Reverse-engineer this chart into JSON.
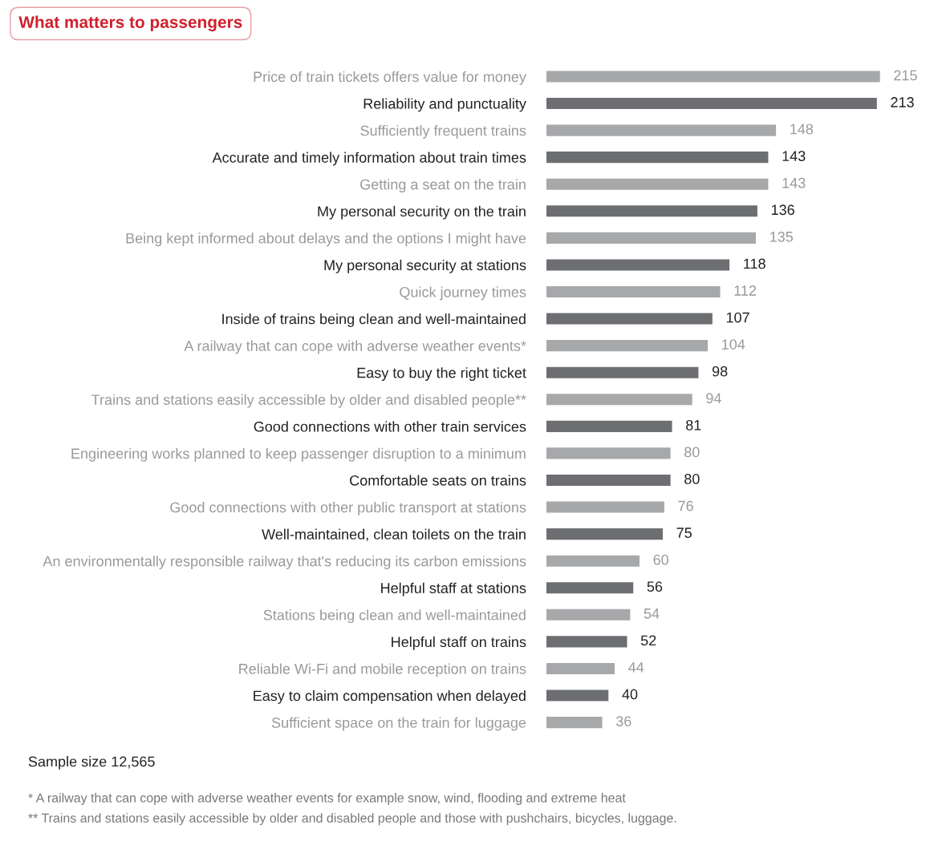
{
  "chart_data": {
    "type": "bar",
    "orientation": "horizontal",
    "title": "What matters to passengers",
    "categories": [
      "Price of train tickets offers value for money",
      "Reliability and punctuality",
      "Sufficiently frequent trains",
      "Accurate and timely information about train times",
      "Getting a seat on the train",
      "My personal security on the train",
      "Being kept informed about delays and the options I might have",
      "My personal security at stations",
      "Quick journey times",
      "Inside of trains being clean and well-maintained",
      "A railway that can cope with adverse weather events*",
      "Easy to buy the right ticket",
      "Trains and stations easily accessible by older and disabled people**",
      "Good connections with other train services",
      "Engineering works planned to keep passenger disruption to a minimum",
      "Comfortable seats on trains",
      "Good connections with other public transport at stations",
      "Well-maintained, clean toilets on the train",
      "An environmentally responsible railway that's reducing its carbon emissions",
      "Helpful staff at stations",
      "Stations being clean and well-maintained",
      "Helpful staff on trains",
      "Reliable Wi-Fi and mobile reception on trains",
      "Easy to claim compensation when delayed",
      "Sufficient space on the train for luggage"
    ],
    "values": [
      215,
      213,
      148,
      143,
      143,
      136,
      135,
      118,
      112,
      107,
      104,
      98,
      94,
      81,
      80,
      80,
      76,
      75,
      60,
      56,
      54,
      52,
      44,
      40,
      36
    ],
    "colors": [
      "#a7a8aa",
      "#6d6e71",
      "#a7a8aa",
      "#6d6e71",
      "#a7a8aa",
      "#6d6e71",
      "#a7a8aa",
      "#6d6e71",
      "#a7a8aa",
      "#6d6e71",
      "#a7a8aa",
      "#6d6e71",
      "#a7a8aa",
      "#6d6e71",
      "#a7a8aa",
      "#6d6e71",
      "#a7a8aa",
      "#6d6e71",
      "#a7a8aa",
      "#6d6e71",
      "#a7a8aa",
      "#6d6e71",
      "#a7a8aa",
      "#6d6e71",
      "#a7a8aa"
    ],
    "data_labels": true,
    "grid": false,
    "legend": false,
    "annotations": [
      "Sample size 12,565",
      "* A railway that can cope with adverse weather events for example snow, wind, flooding and extreme heat",
      "** Trains and stations easily accessible by older and disabled people and those with pushchairs, bicycles, luggage."
    ]
  }
}
